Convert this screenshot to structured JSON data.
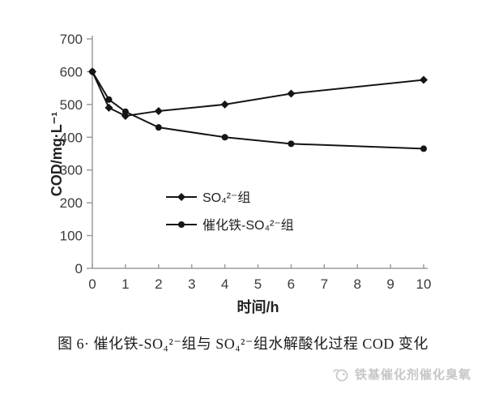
{
  "chart_data": {
    "type": "line",
    "x": [
      0,
      0.5,
      1,
      2,
      4,
      6,
      10
    ],
    "series": [
      {
        "name": "SO₄²⁻组",
        "marker": "diamond",
        "values": [
          600,
          490,
          465,
          480,
          500,
          533,
          575
        ]
      },
      {
        "name": "催化铁-SO₄²⁻组",
        "marker": "circle",
        "values": [
          600,
          515,
          478,
          430,
          400,
          380,
          365
        ]
      }
    ],
    "title": "",
    "xlabel": "时间/h",
    "ylabel": "COD/mg·L⁻¹",
    "xlim": [
      0,
      10
    ],
    "ylim": [
      0,
      700
    ],
    "x_ticks": [
      0,
      1,
      2,
      3,
      4,
      5,
      6,
      7,
      8,
      9,
      10
    ],
    "y_ticks": [
      0,
      100,
      200,
      300,
      400,
      500,
      600,
      700
    ],
    "grid": false,
    "legend_position": "inside-lower-center",
    "line_color": "#151515",
    "axis_color": "#9c9c9c",
    "text_color": "#3b3b3b",
    "label_color": "#222222"
  },
  "caption": {
    "text": "图 6· 催化铁-SO₄²⁻组与 SO₄²⁻组水解酸化过程 COD 变化"
  },
  "watermark": {
    "text": "铁基催化剂催化臭氧",
    "icon": "logo-icon",
    "color": "#c6c6c6"
  }
}
